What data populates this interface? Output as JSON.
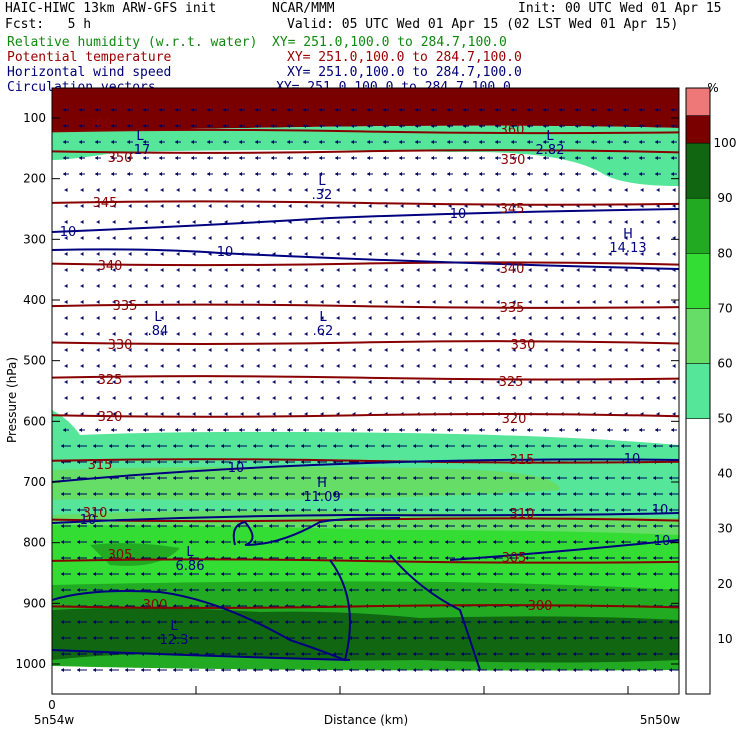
{
  "header": {
    "model": "HAIC-HIWC 13km ARW-GFS init",
    "org": "NCAR/MMM",
    "init": "Init: 00 UTC Wed 01 Apr 15",
    "fcst": "Fcst:   5 h",
    "valid": "Valid: 05 UTC Wed 01 Apr 15 (02 LST Wed 01 Apr 15)"
  },
  "fields": [
    {
      "name": "Relative humidity (w.r.t. water)",
      "xy": "XY= 251.0,100.0 to 284.7,100.0",
      "color": "#118811"
    },
    {
      "name": "Potential temperature",
      "xy": "XY= 251.0,100.0 to 284.7,100.0",
      "color": "#990000"
    },
    {
      "name": "Horizontal wind speed",
      "xy": "XY= 251.0,100.0 to 284.7,100.0",
      "color": "#000077"
    },
    {
      "name": "Circulation vectors",
      "xy": "XY= 251.0,100.0 to 284.7,100.0",
      "color": "#000077"
    }
  ],
  "chart_data": {
    "type": "heatmap",
    "ylabel": "Pressure (hPa)",
    "xlabel": "Distance (km)",
    "y_ticks": [
      100,
      200,
      300,
      400,
      500,
      600,
      700,
      800,
      900,
      1000
    ],
    "ylim": [
      1050,
      80
    ],
    "x_tick_zero": "0",
    "x_left_label": "5n54w",
    "x_right_label": "5n50w",
    "colorbar": {
      "unit": "%",
      "ticks": [
        10,
        20,
        30,
        40,
        50,
        60,
        70,
        80,
        90,
        100
      ],
      "bands": [
        {
          "from": 0,
          "to": 50,
          "color": "#ffffff"
        },
        {
          "from": 50,
          "to": 60,
          "color": "#55e699"
        },
        {
          "from": 60,
          "to": 70,
          "color": "#66dd66"
        },
        {
          "from": 70,
          "to": 80,
          "color": "#33dd33"
        },
        {
          "from": 80,
          "to": 90,
          "color": "#22aa22"
        },
        {
          "from": 90,
          "to": 100,
          "color": "#116611"
        },
        {
          "from": 100,
          "to": 105,
          "color": "#7a0000"
        },
        {
          "from": 105,
          "to": 110,
          "color": "#ee7777"
        }
      ]
    },
    "theta_lines": [
      {
        "value": "360",
        "p": 122
      },
      {
        "value": "350",
        "p": 155
      },
      {
        "value": "345",
        "p": 240
      },
      {
        "value": "340",
        "p": 340
      },
      {
        "value": "335",
        "p": 410
      },
      {
        "value": "330",
        "p": 470
      },
      {
        "value": "325",
        "p": 528
      },
      {
        "value": "320",
        "p": 590
      },
      {
        "value": "315",
        "p": 665
      },
      {
        "value": "310",
        "p": 762
      },
      {
        "value": "305",
        "p": 830
      },
      {
        "value": "300",
        "p": 905
      }
    ],
    "wind_labels": [
      "10",
      "10",
      "10",
      "10",
      "10",
      "10",
      "10",
      "10"
    ],
    "extrema": [
      {
        "type": "L",
        "value": ".17"
      },
      {
        "type": "L",
        "value": "2.82"
      },
      {
        "type": "L",
        "value": ".32"
      },
      {
        "type": "H",
        "value": "14.13"
      },
      {
        "type": "L",
        "value": ".84"
      },
      {
        "type": "L",
        "value": ".62"
      },
      {
        "type": "H",
        "value": "11.09"
      },
      {
        "type": "L",
        "value": "6.86"
      },
      {
        "type": "L",
        "value": "12.3"
      }
    ]
  }
}
